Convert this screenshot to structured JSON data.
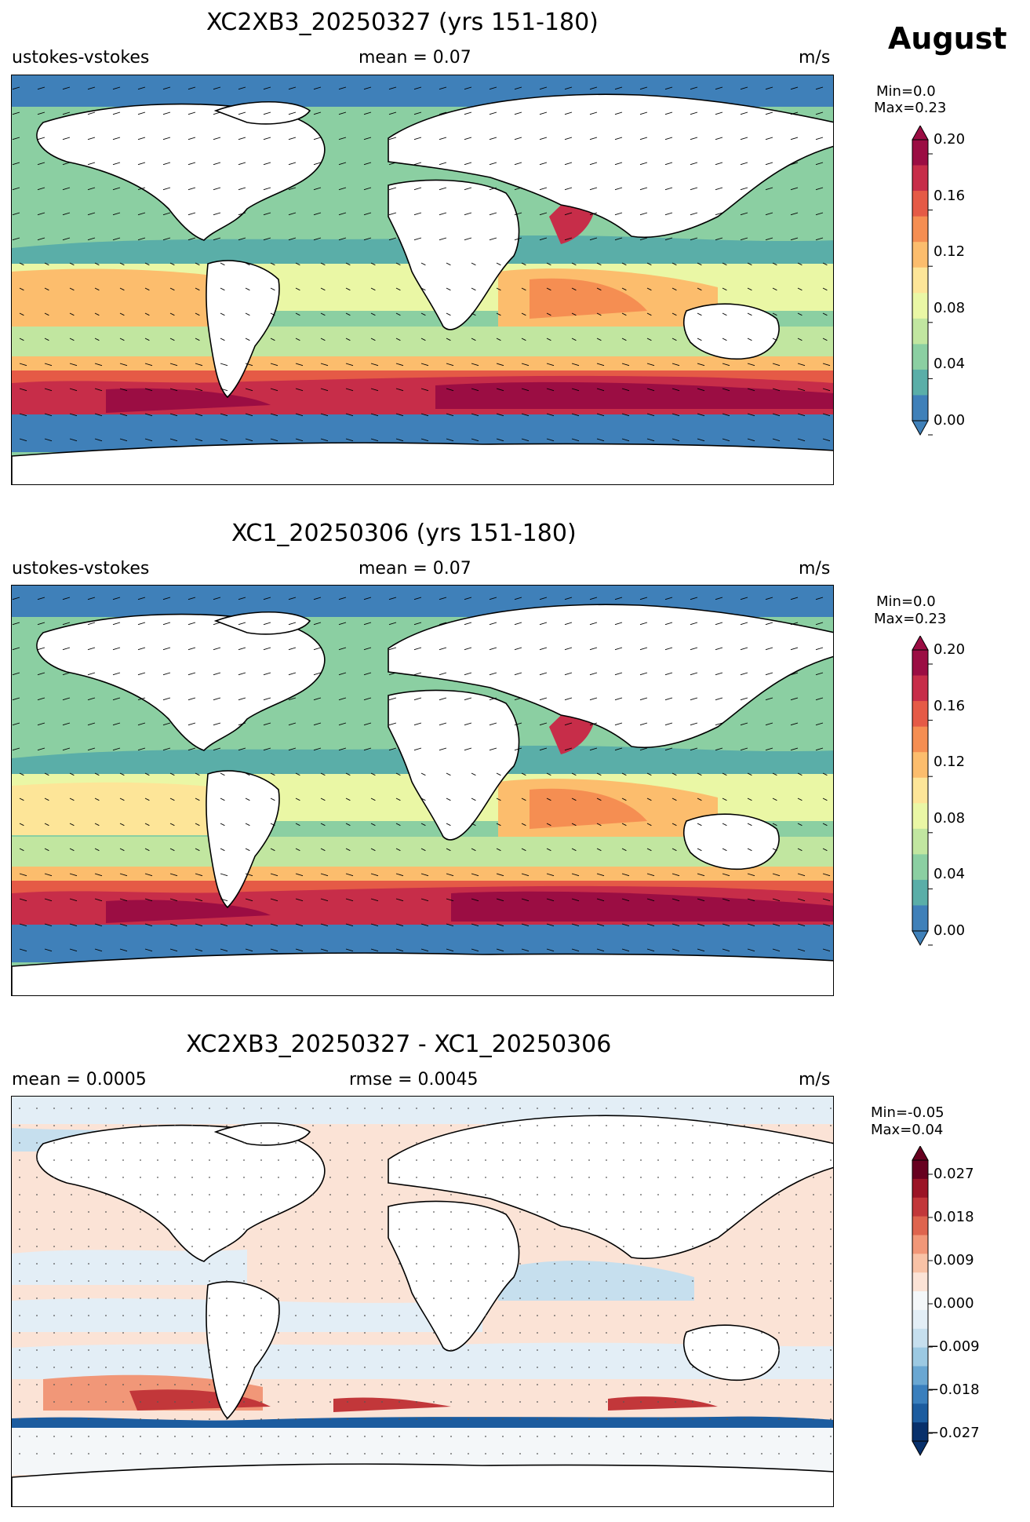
{
  "month": "August",
  "panels": [
    {
      "title": "XC2XB3_20250327 (yrs 151-180)",
      "left_label": "ustokes-vstokes",
      "center_label": "mean = 0.07",
      "units": "m/s",
      "minmax": [
        "Min=0.0",
        "Max=0.23"
      ],
      "colorbar_ticks": [
        "0.20",
        "0.16",
        "0.12",
        "0.08",
        "0.04",
        "0.00"
      ],
      "palette": [
        "#3f80b9",
        "#5aaea8",
        "#8bcfa2",
        "#c1e6a0",
        "#eaf7a5",
        "#fde598",
        "#fcbd6d",
        "#f58e52",
        "#e55a46",
        "#c72d49",
        "#9b0d43"
      ]
    },
    {
      "title": "XC1_20250306 (yrs 151-180)",
      "left_label": "ustokes-vstokes",
      "center_label": "mean = 0.07",
      "units": "m/s",
      "minmax": [
        "Min=0.0",
        "Max=0.23"
      ],
      "colorbar_ticks": [
        "0.20",
        "0.16",
        "0.12",
        "0.08",
        "0.04",
        "0.00"
      ],
      "palette": [
        "#3f80b9",
        "#5aaea8",
        "#8bcfa2",
        "#c1e6a0",
        "#eaf7a5",
        "#fde598",
        "#fcbd6d",
        "#f58e52",
        "#e55a46",
        "#c72d49",
        "#9b0d43"
      ]
    },
    {
      "title": "XC2XB3_20250327 - XC1_20250306",
      "left_label": "mean = 0.0005",
      "center_label": "rmse = 0.0045",
      "units": "m/s",
      "minmax": [
        "Min=-0.05",
        "Max=0.04"
      ],
      "colorbar_ticks": [
        "0.027",
        "0.018",
        "0.009",
        "0.000",
        "−0.009",
        "−0.018",
        "−0.027"
      ],
      "palette": [
        "#08306b",
        "#1c5c9f",
        "#3a7fbd",
        "#6aa7d2",
        "#9cc9e2",
        "#c6dfee",
        "#e3eef6",
        "#f4f7f9",
        "#fbe3d6",
        "#f8c2a6",
        "#f19778",
        "#de644e",
        "#c2373a",
        "#9b1426",
        "#67001f"
      ]
    }
  ],
  "colors": {
    "land": "#ffffff",
    "coast": "#000000",
    "ocean_base_top": "#8bcfa2",
    "diff_base": "#f3e2da"
  }
}
